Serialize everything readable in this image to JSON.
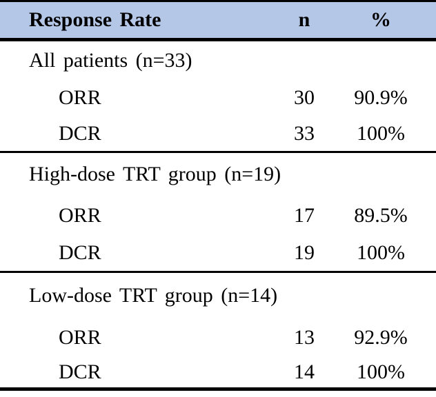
{
  "table": {
    "header": {
      "title": "Response Rate",
      "col_n": "n",
      "col_pct": "%"
    },
    "sections": [
      {
        "group_label": "All patients (n=33)",
        "rows": [
          {
            "label": "ORR",
            "n": "30",
            "pct": "90.9%"
          },
          {
            "label": "DCR",
            "n": "33",
            "pct": "100%"
          }
        ]
      },
      {
        "group_label": "High-dose TRT group (n=19)",
        "rows": [
          {
            "label": "ORR",
            "n": "17",
            "pct": "89.5%"
          },
          {
            "label": "DCR",
            "n": "19",
            "pct": "100%"
          }
        ]
      },
      {
        "group_label": "Low-dose TRT group (n=14)",
        "rows": [
          {
            "label": "ORR",
            "n": "13",
            "pct": "92.9%"
          },
          {
            "label": "DCR",
            "n": "14",
            "pct": "100%"
          }
        ]
      }
    ],
    "colors": {
      "header_bg": "#b4c7e7",
      "border": "#000000",
      "text": "#000000"
    }
  }
}
